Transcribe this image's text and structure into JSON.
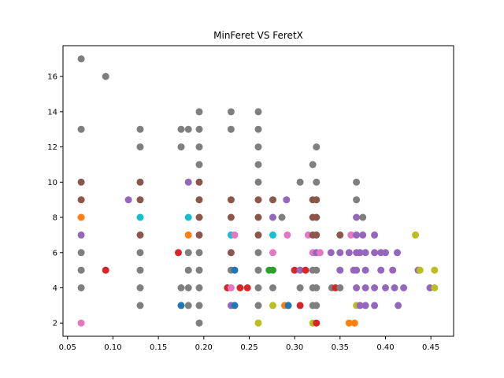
{
  "chart_data": {
    "type": "scatter",
    "title": "MinFeret VS FeretX",
    "xlabel": "",
    "ylabel": "",
    "xlim": [
      0.045,
      0.475
    ],
    "ylim": [
      1.25,
      17.75
    ],
    "x_ticks": [
      0.05,
      0.1,
      0.15,
      0.2,
      0.25,
      0.3,
      0.35,
      0.4,
      0.45
    ],
    "x_tick_labels": [
      "0.05",
      "0.10",
      "0.15",
      "0.20",
      "0.25",
      "0.30",
      "0.35",
      "0.40",
      "0.45"
    ],
    "y_ticks": [
      2,
      4,
      6,
      8,
      10,
      12,
      14,
      16
    ],
    "y_tick_labels": [
      "2",
      "4",
      "6",
      "8",
      "10",
      "12",
      "14",
      "16"
    ],
    "grid": false,
    "legend": "none",
    "points": [
      {
        "x": 0.065,
        "y": 17,
        "color": "#7f7f7f"
      },
      {
        "x": 0.065,
        "y": 13,
        "color": "#7f7f7f"
      },
      {
        "x": 0.065,
        "y": 10,
        "color": "#8c564b"
      },
      {
        "x": 0.065,
        "y": 9,
        "color": "#8c564b"
      },
      {
        "x": 0.065,
        "y": 8,
        "color": "#ff7f0e"
      },
      {
        "x": 0.065,
        "y": 7,
        "color": "#9467bd"
      },
      {
        "x": 0.065,
        "y": 6,
        "color": "#7f7f7f"
      },
      {
        "x": 0.065,
        "y": 5,
        "color": "#7f7f7f"
      },
      {
        "x": 0.065,
        "y": 4,
        "color": "#7f7f7f"
      },
      {
        "x": 0.065,
        "y": 2,
        "color": "#e377c2"
      },
      {
        "x": 0.092,
        "y": 16,
        "color": "#7f7f7f"
      },
      {
        "x": 0.092,
        "y": 5,
        "color": "#d62728"
      },
      {
        "x": 0.117,
        "y": 9,
        "color": "#9467bd"
      },
      {
        "x": 0.13,
        "y": 13,
        "color": "#7f7f7f"
      },
      {
        "x": 0.13,
        "y": 12,
        "color": "#7f7f7f"
      },
      {
        "x": 0.13,
        "y": 10,
        "color": "#8c564b"
      },
      {
        "x": 0.13,
        "y": 9,
        "color": "#8c564b"
      },
      {
        "x": 0.13,
        "y": 8,
        "color": "#17becf"
      },
      {
        "x": 0.13,
        "y": 7,
        "color": "#8c564b"
      },
      {
        "x": 0.13,
        "y": 6,
        "color": "#7f7f7f"
      },
      {
        "x": 0.13,
        "y": 5,
        "color": "#7f7f7f"
      },
      {
        "x": 0.13,
        "y": 4,
        "color": "#7f7f7f"
      },
      {
        "x": 0.13,
        "y": 3,
        "color": "#7f7f7f"
      },
      {
        "x": 0.172,
        "y": 6,
        "color": "#d62728"
      },
      {
        "x": 0.175,
        "y": 13,
        "color": "#7f7f7f"
      },
      {
        "x": 0.175,
        "y": 12,
        "color": "#7f7f7f"
      },
      {
        "x": 0.175,
        "y": 4,
        "color": "#7f7f7f"
      },
      {
        "x": 0.175,
        "y": 3,
        "color": "#1f77b4"
      },
      {
        "x": 0.183,
        "y": 13,
        "color": "#7f7f7f"
      },
      {
        "x": 0.183,
        "y": 10,
        "color": "#9467bd"
      },
      {
        "x": 0.183,
        "y": 8,
        "color": "#17becf"
      },
      {
        "x": 0.183,
        "y": 7,
        "color": "#ff7f0e"
      },
      {
        "x": 0.183,
        "y": 6,
        "color": "#7f7f7f"
      },
      {
        "x": 0.183,
        "y": 5,
        "color": "#7f7f7f"
      },
      {
        "x": 0.183,
        "y": 4,
        "color": "#7f7f7f"
      },
      {
        "x": 0.183,
        "y": 3,
        "color": "#7f7f7f"
      },
      {
        "x": 0.195,
        "y": 14,
        "color": "#7f7f7f"
      },
      {
        "x": 0.195,
        "y": 13,
        "color": "#7f7f7f"
      },
      {
        "x": 0.195,
        "y": 12,
        "color": "#7f7f7f"
      },
      {
        "x": 0.195,
        "y": 11,
        "color": "#7f7f7f"
      },
      {
        "x": 0.195,
        "y": 10,
        "color": "#8c564b"
      },
      {
        "x": 0.195,
        "y": 9,
        "color": "#8c564b"
      },
      {
        "x": 0.195,
        "y": 8,
        "color": "#8c564b"
      },
      {
        "x": 0.195,
        "y": 7,
        "color": "#8c564b"
      },
      {
        "x": 0.195,
        "y": 6,
        "color": "#7f7f7f"
      },
      {
        "x": 0.195,
        "y": 5,
        "color": "#7f7f7f"
      },
      {
        "x": 0.195,
        "y": 4,
        "color": "#7f7f7f"
      },
      {
        "x": 0.195,
        "y": 3,
        "color": "#7f7f7f"
      },
      {
        "x": 0.195,
        "y": 2,
        "color": "#7f7f7f"
      },
      {
        "x": 0.226,
        "y": 4,
        "color": "#d62728"
      },
      {
        "x": 0.23,
        "y": 14,
        "color": "#7f7f7f"
      },
      {
        "x": 0.23,
        "y": 13,
        "color": "#7f7f7f"
      },
      {
        "x": 0.23,
        "y": 9,
        "color": "#8c564b"
      },
      {
        "x": 0.23,
        "y": 8,
        "color": "#8c564b"
      },
      {
        "x": 0.23,
        "y": 7,
        "color": "#17becf"
      },
      {
        "x": 0.23,
        "y": 6,
        "color": "#8c564b"
      },
      {
        "x": 0.23,
        "y": 5,
        "color": "#7f7f7f"
      },
      {
        "x": 0.23,
        "y": 4,
        "color": "#e377c2"
      },
      {
        "x": 0.23,
        "y": 3,
        "color": "#9467bd"
      },
      {
        "x": 0.234,
        "y": 7,
        "color": "#e377c2"
      },
      {
        "x": 0.234,
        "y": 5,
        "color": "#1f77b4"
      },
      {
        "x": 0.234,
        "y": 3,
        "color": "#1f77b4"
      },
      {
        "x": 0.24,
        "y": 4,
        "color": "#d62728"
      },
      {
        "x": 0.248,
        "y": 4,
        "color": "#d62728"
      },
      {
        "x": 0.26,
        "y": 14,
        "color": "#7f7f7f"
      },
      {
        "x": 0.26,
        "y": 13,
        "color": "#7f7f7f"
      },
      {
        "x": 0.26,
        "y": 12,
        "color": "#7f7f7f"
      },
      {
        "x": 0.26,
        "y": 11,
        "color": "#7f7f7f"
      },
      {
        "x": 0.26,
        "y": 10,
        "color": "#7f7f7f"
      },
      {
        "x": 0.26,
        "y": 9,
        "color": "#8c564b"
      },
      {
        "x": 0.26,
        "y": 8,
        "color": "#8c564b"
      },
      {
        "x": 0.26,
        "y": 7,
        "color": "#8c564b"
      },
      {
        "x": 0.26,
        "y": 6,
        "color": "#7f7f7f"
      },
      {
        "x": 0.26,
        "y": 5,
        "color": "#7f7f7f"
      },
      {
        "x": 0.26,
        "y": 4,
        "color": "#7f7f7f"
      },
      {
        "x": 0.26,
        "y": 3,
        "color": "#7f7f7f"
      },
      {
        "x": 0.26,
        "y": 2,
        "color": "#bcbd22"
      },
      {
        "x": 0.272,
        "y": 5,
        "color": "#2ca02c"
      },
      {
        "x": 0.276,
        "y": 9,
        "color": "#8c564b"
      },
      {
        "x": 0.276,
        "y": 8,
        "color": "#9467bd"
      },
      {
        "x": 0.276,
        "y": 7,
        "color": "#17becf"
      },
      {
        "x": 0.276,
        "y": 6,
        "color": "#e377c2"
      },
      {
        "x": 0.276,
        "y": 5,
        "color": "#2ca02c"
      },
      {
        "x": 0.276,
        "y": 4,
        "color": "#7f7f7f"
      },
      {
        "x": 0.276,
        "y": 3,
        "color": "#bcbd22"
      },
      {
        "x": 0.286,
        "y": 8,
        "color": "#7f7f7f"
      },
      {
        "x": 0.289,
        "y": 3,
        "color": "#ff7f0e"
      },
      {
        "x": 0.291,
        "y": 9,
        "color": "#9467bd"
      },
      {
        "x": 0.292,
        "y": 7,
        "color": "#e377c2"
      },
      {
        "x": 0.293,
        "y": 3,
        "color": "#1f77b4"
      },
      {
        "x": 0.3,
        "y": 5,
        "color": "#d62728"
      },
      {
        "x": 0.306,
        "y": 10,
        "color": "#7f7f7f"
      },
      {
        "x": 0.306,
        "y": 5,
        "color": "#9467bd"
      },
      {
        "x": 0.306,
        "y": 4,
        "color": "#7f7f7f"
      },
      {
        "x": 0.306,
        "y": 3,
        "color": "#d62728"
      },
      {
        "x": 0.312,
        "y": 5,
        "color": "#d62728"
      },
      {
        "x": 0.315,
        "y": 7,
        "color": "#e377c2"
      },
      {
        "x": 0.32,
        "y": 11,
        "color": "#7f7f7f"
      },
      {
        "x": 0.32,
        "y": 9,
        "color": "#8c564b"
      },
      {
        "x": 0.32,
        "y": 8,
        "color": "#8c564b"
      },
      {
        "x": 0.32,
        "y": 7,
        "color": "#8c564b"
      },
      {
        "x": 0.32,
        "y": 6,
        "color": "#e377c2"
      },
      {
        "x": 0.32,
        "y": 5,
        "color": "#7f7f7f"
      },
      {
        "x": 0.32,
        "y": 4,
        "color": "#7f7f7f"
      },
      {
        "x": 0.32,
        "y": 3,
        "color": "#7f7f7f"
      },
      {
        "x": 0.32,
        "y": 2,
        "color": "#bcbd22"
      },
      {
        "x": 0.324,
        "y": 12,
        "color": "#7f7f7f"
      },
      {
        "x": 0.324,
        "y": 10,
        "color": "#7f7f7f"
      },
      {
        "x": 0.324,
        "y": 9,
        "color": "#8c564b"
      },
      {
        "x": 0.324,
        "y": 8,
        "color": "#8c564b"
      },
      {
        "x": 0.324,
        "y": 7,
        "color": "#8c564b"
      },
      {
        "x": 0.324,
        "y": 6,
        "color": "#9467bd"
      },
      {
        "x": 0.324,
        "y": 5,
        "color": "#7f7f7f"
      },
      {
        "x": 0.324,
        "y": 4,
        "color": "#7f7f7f"
      },
      {
        "x": 0.324,
        "y": 3,
        "color": "#7f7f7f"
      },
      {
        "x": 0.324,
        "y": 2,
        "color": "#d62728"
      },
      {
        "x": 0.328,
        "y": 6,
        "color": "#e377c2"
      },
      {
        "x": 0.34,
        "y": 6,
        "color": "#9467bd"
      },
      {
        "x": 0.341,
        "y": 4,
        "color": "#7f7f7f"
      },
      {
        "x": 0.345,
        "y": 4,
        "color": "#d62728"
      },
      {
        "x": 0.35,
        "y": 7,
        "color": "#8c564b"
      },
      {
        "x": 0.35,
        "y": 6,
        "color": "#9467bd"
      },
      {
        "x": 0.35,
        "y": 5,
        "color": "#9467bd"
      },
      {
        "x": 0.35,
        "y": 4,
        "color": "#7f7f7f"
      },
      {
        "x": 0.36,
        "y": 6,
        "color": "#9467bd"
      },
      {
        "x": 0.36,
        "y": 2,
        "color": "#ff7f0e"
      },
      {
        "x": 0.362,
        "y": 7,
        "color": "#e377c2"
      },
      {
        "x": 0.365,
        "y": 5,
        "color": "#9467bd"
      },
      {
        "x": 0.366,
        "y": 2,
        "color": "#ff7f0e"
      },
      {
        "x": 0.368,
        "y": 10,
        "color": "#7f7f7f"
      },
      {
        "x": 0.368,
        "y": 9,
        "color": "#7f7f7f"
      },
      {
        "x": 0.368,
        "y": 8,
        "color": "#9467bd"
      },
      {
        "x": 0.368,
        "y": 7,
        "color": "#9467bd"
      },
      {
        "x": 0.368,
        "y": 6,
        "color": "#9467bd"
      },
      {
        "x": 0.368,
        "y": 5,
        "color": "#9467bd"
      },
      {
        "x": 0.368,
        "y": 4,
        "color": "#9467bd"
      },
      {
        "x": 0.368,
        "y": 3,
        "color": "#bcbd22"
      },
      {
        "x": 0.372,
        "y": 6,
        "color": "#9467bd"
      },
      {
        "x": 0.372,
        "y": 3,
        "color": "#9467bd"
      },
      {
        "x": 0.375,
        "y": 8,
        "color": "#7f7f7f"
      },
      {
        "x": 0.375,
        "y": 7,
        "color": "#9467bd"
      },
      {
        "x": 0.378,
        "y": 6,
        "color": "#9467bd"
      },
      {
        "x": 0.378,
        "y": 5,
        "color": "#9467bd"
      },
      {
        "x": 0.378,
        "y": 4,
        "color": "#9467bd"
      },
      {
        "x": 0.378,
        "y": 3,
        "color": "#9467bd"
      },
      {
        "x": 0.388,
        "y": 7,
        "color": "#9467bd"
      },
      {
        "x": 0.388,
        "y": 6,
        "color": "#9467bd"
      },
      {
        "x": 0.388,
        "y": 4,
        "color": "#9467bd"
      },
      {
        "x": 0.388,
        "y": 3,
        "color": "#9467bd"
      },
      {
        "x": 0.395,
        "y": 6,
        "color": "#9467bd"
      },
      {
        "x": 0.395,
        "y": 5,
        "color": "#9467bd"
      },
      {
        "x": 0.4,
        "y": 6,
        "color": "#9467bd"
      },
      {
        "x": 0.4,
        "y": 4,
        "color": "#9467bd"
      },
      {
        "x": 0.408,
        "y": 5,
        "color": "#9467bd"
      },
      {
        "x": 0.41,
        "y": 4,
        "color": "#9467bd"
      },
      {
        "x": 0.413,
        "y": 6,
        "color": "#9467bd"
      },
      {
        "x": 0.414,
        "y": 3,
        "color": "#9467bd"
      },
      {
        "x": 0.42,
        "y": 4,
        "color": "#9467bd"
      },
      {
        "x": 0.433,
        "y": 7,
        "color": "#bcbd22"
      },
      {
        "x": 0.436,
        "y": 5,
        "color": "#9467bd"
      },
      {
        "x": 0.438,
        "y": 5,
        "color": "#bcbd22"
      },
      {
        "x": 0.449,
        "y": 4,
        "color": "#9467bd"
      },
      {
        "x": 0.454,
        "y": 5,
        "color": "#bcbd22"
      },
      {
        "x": 0.454,
        "y": 4,
        "color": "#bcbd22"
      }
    ]
  }
}
